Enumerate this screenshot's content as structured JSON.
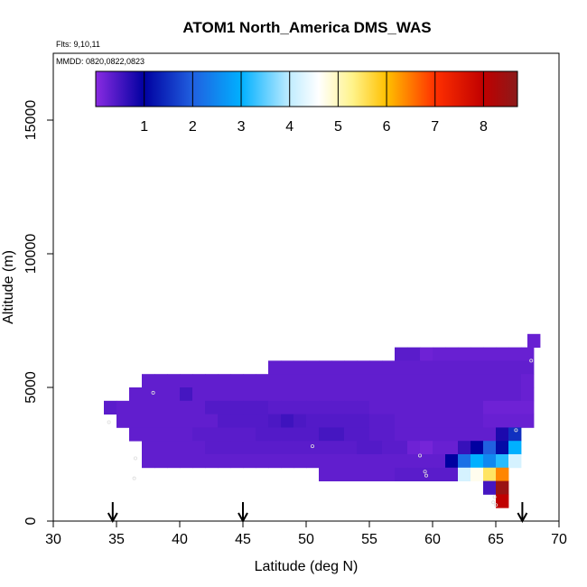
{
  "chart_data": {
    "type": "heatmap",
    "title": "ATOM1 North_America DMS_WAS",
    "subtitle_flights": "Flts: 9,10,11",
    "subtitle_dates": "MMDD: 0820,0822,0823",
    "xlabel": "Latitude (deg N)",
    "ylabel": "Altitude (m)",
    "xlim": [
      30,
      70
    ],
    "ylim": [
      0,
      17500
    ],
    "x_ticks": [
      30,
      35,
      40,
      45,
      50,
      55,
      60,
      65,
      70
    ],
    "y_ticks": [
      0,
      5000,
      10000,
      15000
    ],
    "colorbar": {
      "range": [
        0,
        8.7
      ],
      "ticks": [
        1,
        2,
        3,
        4,
        5,
        6,
        7,
        8
      ],
      "stops": [
        {
          "v": 0.0,
          "color": "#8a2be2"
        },
        {
          "v": 1.0,
          "color": "#0000a0"
        },
        {
          "v": 2.0,
          "color": "#2060e0"
        },
        {
          "v": 3.0,
          "color": "#00b0ff"
        },
        {
          "v": 4.0,
          "color": "#c0ecff"
        },
        {
          "v": 4.6,
          "color": "#ffffff"
        },
        {
          "v": 5.3,
          "color": "#fff38a"
        },
        {
          "v": 6.0,
          "color": "#ffc000"
        },
        {
          "v": 7.0,
          "color": "#ff3000"
        },
        {
          "v": 8.0,
          "color": "#c00000"
        },
        {
          "v": 8.7,
          "color": "#8b1a1a"
        }
      ]
    },
    "cell": {
      "dlat": 1,
      "dalt": 500
    },
    "cells": [
      [
        67.5,
        6500,
        0.25
      ],
      [
        57,
        6000,
        0.35
      ],
      [
        58,
        6000,
        0.35
      ],
      [
        59,
        6000,
        0.2
      ],
      [
        60,
        6000,
        0.25
      ],
      [
        61,
        6000,
        0.25
      ],
      [
        62,
        6000,
        0.25
      ],
      [
        63,
        6000,
        0.25
      ],
      [
        64,
        6000,
        0.25
      ],
      [
        65,
        6000,
        0.25
      ],
      [
        66,
        6000,
        0.25
      ],
      [
        67,
        6000,
        0.25
      ],
      [
        47,
        5500,
        0.3
      ],
      [
        48,
        5500,
        0.3
      ],
      [
        49,
        5500,
        0.3
      ],
      [
        50,
        5500,
        0.3
      ],
      [
        51,
        5500,
        0.3
      ],
      [
        52,
        5500,
        0.3
      ],
      [
        53,
        5500,
        0.3
      ],
      [
        54,
        5500,
        0.3
      ],
      [
        55,
        5500,
        0.3
      ],
      [
        56,
        5500,
        0.3
      ],
      [
        57,
        5500,
        0.3
      ],
      [
        58,
        5500,
        0.3
      ],
      [
        59,
        5500,
        0.3
      ],
      [
        60,
        5500,
        0.3
      ],
      [
        61,
        5500,
        0.3
      ],
      [
        62,
        5500,
        0.3
      ],
      [
        63,
        5500,
        0.3
      ],
      [
        64,
        5500,
        0.3
      ],
      [
        65,
        5500,
        0.3
      ],
      [
        66,
        5500,
        0.3
      ],
      [
        67,
        5500,
        0.3
      ],
      [
        37,
        5000,
        0.3
      ],
      [
        38,
        5000,
        0.3
      ],
      [
        39,
        5000,
        0.3
      ],
      [
        40,
        5000,
        0.3
      ],
      [
        41,
        5000,
        0.3
      ],
      [
        42,
        5000,
        0.3
      ],
      [
        43,
        5000,
        0.3
      ],
      [
        44,
        5000,
        0.3
      ],
      [
        45,
        5000,
        0.3
      ],
      [
        46,
        5000,
        0.3
      ],
      [
        47,
        5000,
        0.3
      ],
      [
        48,
        5000,
        0.3
      ],
      [
        49,
        5000,
        0.3
      ],
      [
        50,
        5000,
        0.3
      ],
      [
        51,
        5000,
        0.3
      ],
      [
        52,
        5000,
        0.3
      ],
      [
        53,
        5000,
        0.3
      ],
      [
        54,
        5000,
        0.3
      ],
      [
        55,
        5000,
        0.3
      ],
      [
        56,
        5000,
        0.3
      ],
      [
        57,
        5000,
        0.3
      ],
      [
        58,
        5000,
        0.3
      ],
      [
        59,
        5000,
        0.3
      ],
      [
        60,
        5000,
        0.3
      ],
      [
        61,
        5000,
        0.3
      ],
      [
        62,
        5000,
        0.3
      ],
      [
        63,
        5000,
        0.3
      ],
      [
        64,
        5000,
        0.3
      ],
      [
        65,
        5000,
        0.3
      ],
      [
        66,
        5000,
        0.3
      ],
      [
        67,
        5000,
        0.25
      ],
      [
        36,
        4500,
        0.3
      ],
      [
        37,
        4500,
        0.3
      ],
      [
        38,
        4500,
        0.3
      ],
      [
        39,
        4500,
        0.3
      ],
      [
        40,
        4500,
        0.5
      ],
      [
        41,
        4500,
        0.3
      ],
      [
        42,
        4500,
        0.3
      ],
      [
        43,
        4500,
        0.3
      ],
      [
        44,
        4500,
        0.3
      ],
      [
        45,
        4500,
        0.3
      ],
      [
        46,
        4500,
        0.3
      ],
      [
        47,
        4500,
        0.3
      ],
      [
        48,
        4500,
        0.3
      ],
      [
        49,
        4500,
        0.3
      ],
      [
        50,
        4500,
        0.3
      ],
      [
        51,
        4500,
        0.3
      ],
      [
        52,
        4500,
        0.3
      ],
      [
        53,
        4500,
        0.3
      ],
      [
        54,
        4500,
        0.3
      ],
      [
        55,
        4500,
        0.3
      ],
      [
        56,
        4500,
        0.3
      ],
      [
        57,
        4500,
        0.3
      ],
      [
        58,
        4500,
        0.3
      ],
      [
        59,
        4500,
        0.3
      ],
      [
        60,
        4500,
        0.3
      ],
      [
        61,
        4500,
        0.3
      ],
      [
        62,
        4500,
        0.3
      ],
      [
        63,
        4500,
        0.3
      ],
      [
        64,
        4500,
        0.3
      ],
      [
        65,
        4500,
        0.3
      ],
      [
        66,
        4500,
        0.3
      ],
      [
        67,
        4500,
        0.25
      ],
      [
        34,
        4000,
        0.35
      ],
      [
        35,
        4000,
        0.3
      ],
      [
        36,
        4000,
        0.3
      ],
      [
        37,
        4000,
        0.3
      ],
      [
        38,
        4000,
        0.3
      ],
      [
        39,
        4000,
        0.3
      ],
      [
        40,
        4000,
        0.3
      ],
      [
        41,
        4000,
        0.3
      ],
      [
        42,
        4000,
        0.4
      ],
      [
        43,
        4000,
        0.4
      ],
      [
        44,
        4000,
        0.4
      ],
      [
        45,
        4000,
        0.4
      ],
      [
        46,
        4000,
        0.4
      ],
      [
        47,
        4000,
        0.35
      ],
      [
        48,
        4000,
        0.35
      ],
      [
        49,
        4000,
        0.35
      ],
      [
        50,
        4000,
        0.35
      ],
      [
        51,
        4000,
        0.35
      ],
      [
        52,
        4000,
        0.35
      ],
      [
        53,
        4000,
        0.35
      ],
      [
        54,
        4000,
        0.35
      ],
      [
        55,
        4000,
        0.3
      ],
      [
        56,
        4000,
        0.3
      ],
      [
        57,
        4000,
        0.3
      ],
      [
        58,
        4000,
        0.3
      ],
      [
        59,
        4000,
        0.3
      ],
      [
        60,
        4000,
        0.3
      ],
      [
        61,
        4000,
        0.3
      ],
      [
        62,
        4000,
        0.3
      ],
      [
        63,
        4000,
        0.3
      ],
      [
        64,
        4000,
        0.2
      ],
      [
        65,
        4000,
        0.2
      ],
      [
        66,
        4000,
        0.2
      ],
      [
        67,
        4000,
        0.2
      ],
      [
        35,
        3500,
        0.3
      ],
      [
        36,
        3500,
        0.3
      ],
      [
        37,
        3500,
        0.3
      ],
      [
        38,
        3500,
        0.3
      ],
      [
        39,
        3500,
        0.3
      ],
      [
        40,
        3500,
        0.3
      ],
      [
        41,
        3500,
        0.3
      ],
      [
        42,
        3500,
        0.3
      ],
      [
        43,
        3500,
        0.4
      ],
      [
        44,
        3500,
        0.4
      ],
      [
        45,
        3500,
        0.4
      ],
      [
        46,
        3500,
        0.4
      ],
      [
        47,
        3500,
        0.45
      ],
      [
        48,
        3500,
        0.55
      ],
      [
        49,
        3500,
        0.45
      ],
      [
        50,
        3500,
        0.4
      ],
      [
        51,
        3500,
        0.4
      ],
      [
        52,
        3500,
        0.4
      ],
      [
        53,
        3500,
        0.4
      ],
      [
        54,
        3500,
        0.4
      ],
      [
        55,
        3500,
        0.35
      ],
      [
        56,
        3500,
        0.35
      ],
      [
        57,
        3500,
        0.3
      ],
      [
        58,
        3500,
        0.3
      ],
      [
        59,
        3500,
        0.3
      ],
      [
        60,
        3500,
        0.3
      ],
      [
        61,
        3500,
        0.3
      ],
      [
        62,
        3500,
        0.3
      ],
      [
        63,
        3500,
        0.3
      ],
      [
        64,
        3500,
        0.25
      ],
      [
        65,
        3500,
        0.25
      ],
      [
        66,
        3500,
        0.25
      ],
      [
        67,
        3500,
        0.25
      ],
      [
        36,
        3000,
        0.3
      ],
      [
        37,
        3000,
        0.3
      ],
      [
        38,
        3000,
        0.3
      ],
      [
        39,
        3000,
        0.3
      ],
      [
        40,
        3000,
        0.3
      ],
      [
        41,
        3000,
        0.35
      ],
      [
        42,
        3000,
        0.35
      ],
      [
        43,
        3000,
        0.35
      ],
      [
        44,
        3000,
        0.35
      ],
      [
        45,
        3000,
        0.35
      ],
      [
        46,
        3000,
        0.4
      ],
      [
        47,
        3000,
        0.4
      ],
      [
        48,
        3000,
        0.4
      ],
      [
        49,
        3000,
        0.4
      ],
      [
        50,
        3000,
        0.4
      ],
      [
        51,
        3000,
        0.5
      ],
      [
        52,
        3000,
        0.5
      ],
      [
        53,
        3000,
        0.4
      ],
      [
        54,
        3000,
        0.4
      ],
      [
        55,
        3000,
        0.35
      ],
      [
        56,
        3000,
        0.35
      ],
      [
        57,
        3000,
        0.3
      ],
      [
        58,
        3000,
        0.3
      ],
      [
        59,
        3000,
        0.3
      ],
      [
        60,
        3000,
        0.3
      ],
      [
        61,
        3000,
        0.3
      ],
      [
        62,
        3000,
        0.3
      ],
      [
        63,
        3000,
        0.3
      ],
      [
        64,
        3000,
        0.3
      ],
      [
        65,
        3000,
        0.8
      ],
      [
        66,
        3000,
        1.5
      ],
      [
        37,
        2500,
        0.3
      ],
      [
        38,
        2500,
        0.3
      ],
      [
        39,
        2500,
        0.3
      ],
      [
        40,
        2500,
        0.3
      ],
      [
        41,
        2500,
        0.3
      ],
      [
        42,
        2500,
        0.35
      ],
      [
        43,
        2500,
        0.35
      ],
      [
        44,
        2500,
        0.35
      ],
      [
        45,
        2500,
        0.35
      ],
      [
        46,
        2500,
        0.35
      ],
      [
        47,
        2500,
        0.35
      ],
      [
        48,
        2500,
        0.35
      ],
      [
        49,
        2500,
        0.35
      ],
      [
        50,
        2500,
        0.35
      ],
      [
        51,
        2500,
        0.35
      ],
      [
        52,
        2500,
        0.35
      ],
      [
        53,
        2500,
        0.35
      ],
      [
        54,
        2500,
        0.4
      ],
      [
        55,
        2500,
        0.4
      ],
      [
        56,
        2500,
        0.35
      ],
      [
        57,
        2500,
        0.35
      ],
      [
        58,
        2500,
        0.2
      ],
      [
        59,
        2500,
        0.15
      ],
      [
        60,
        2500,
        0.25
      ],
      [
        61,
        2500,
        0.25
      ],
      [
        62,
        2500,
        0.6
      ],
      [
        63,
        2500,
        1.0
      ],
      [
        64,
        2500,
        2.0
      ],
      [
        65,
        2500,
        1.1
      ],
      [
        66,
        2500,
        3.0
      ],
      [
        37,
        2000,
        0.3
      ],
      [
        38,
        2000,
        0.3
      ],
      [
        39,
        2000,
        0.3
      ],
      [
        40,
        2000,
        0.3
      ],
      [
        41,
        2000,
        0.3
      ],
      [
        42,
        2000,
        0.3
      ],
      [
        43,
        2000,
        0.3
      ],
      [
        44,
        2000,
        0.3
      ],
      [
        45,
        2000,
        0.3
      ],
      [
        46,
        2000,
        0.3
      ],
      [
        47,
        2000,
        0.3
      ],
      [
        48,
        2000,
        0.3
      ],
      [
        49,
        2000,
        0.3
      ],
      [
        50,
        2000,
        0.3
      ],
      [
        51,
        2000,
        0.3
      ],
      [
        52,
        2000,
        0.3
      ],
      [
        53,
        2000,
        0.3
      ],
      [
        54,
        2000,
        0.3
      ],
      [
        55,
        2000,
        0.3
      ],
      [
        56,
        2000,
        0.3
      ],
      [
        57,
        2000,
        0.3
      ],
      [
        58,
        2000,
        0.3
      ],
      [
        59,
        2000,
        0.3
      ],
      [
        60,
        2000,
        0.3
      ],
      [
        61,
        2000,
        1.0
      ],
      [
        62,
        2000,
        2.2
      ],
      [
        63,
        2000,
        3.0
      ],
      [
        64,
        2000,
        2.5
      ],
      [
        65,
        2000,
        3.2
      ],
      [
        66,
        2000,
        4.2
      ],
      [
        51,
        1500,
        0.3
      ],
      [
        52,
        1500,
        0.3
      ],
      [
        53,
        1500,
        0.3
      ],
      [
        54,
        1500,
        0.3
      ],
      [
        55,
        1500,
        0.3
      ],
      [
        56,
        1500,
        0.3
      ],
      [
        57,
        1500,
        0.35
      ],
      [
        58,
        1500,
        0.35
      ],
      [
        59,
        1500,
        0.35
      ],
      [
        60,
        1500,
        0.35
      ],
      [
        61,
        1500,
        0.35
      ],
      [
        62,
        1500,
        4.2
      ],
      [
        63,
        1500,
        4.7
      ],
      [
        64,
        1500,
        5.5
      ],
      [
        65,
        1500,
        6.4
      ],
      [
        64,
        1000,
        0.5
      ],
      [
        65,
        1000,
        8.5
      ],
      [
        65,
        500,
        8.0
      ]
    ],
    "sample_points": [
      [
        34.4,
        3700
      ],
      [
        36.4,
        1600
      ],
      [
        36.5,
        2350
      ],
      [
        37.9,
        4800
      ],
      [
        50.5,
        2800
      ],
      [
        59.0,
        2450
      ],
      [
        59.4,
        1850
      ],
      [
        59.5,
        1700
      ],
      [
        66.6,
        3400
      ],
      [
        67.8,
        6000
      ],
      [
        64.9,
        900
      ],
      [
        65.0,
        600
      ],
      [
        64.8,
        700
      ]
    ],
    "arrows_lat": [
      34.7,
      45.0,
      67.1
    ]
  }
}
